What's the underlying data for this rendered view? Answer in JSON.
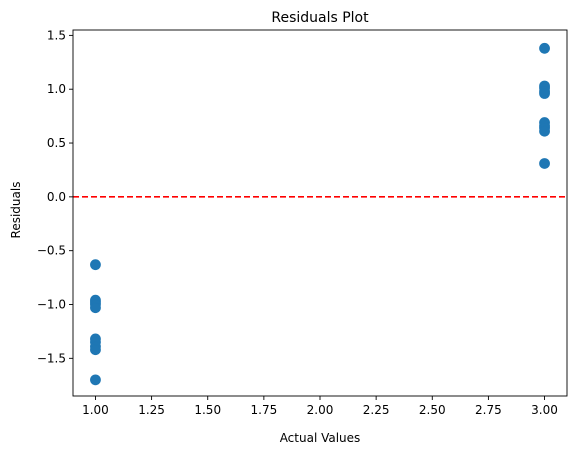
{
  "chart_data": {
    "type": "scatter",
    "title": "Residuals Plot",
    "xlabel": "Actual Values",
    "ylabel": "Residuals",
    "xlim": [
      0.9,
      3.1
    ],
    "ylim": [
      -1.85,
      1.55
    ],
    "xticks": [
      1.0,
      1.25,
      1.5,
      1.75,
      2.0,
      2.25,
      2.5,
      2.75,
      3.0
    ],
    "xtick_labels": [
      "1.00",
      "1.25",
      "1.50",
      "1.75",
      "2.00",
      "2.25",
      "2.50",
      "2.75",
      "3.00"
    ],
    "yticks": [
      -1.5,
      -1.0,
      -0.5,
      0.0,
      0.5,
      1.0,
      1.5
    ],
    "ytick_labels": [
      "−1.5",
      "−1.0",
      "−0.5",
      "0.0",
      "0.5",
      "1.0",
      "1.5"
    ],
    "grid": false,
    "legend": "none",
    "marker_color": "#1f77b4",
    "reference_line": {
      "y": 0.0,
      "color": "#ff0000",
      "style": "dashed"
    },
    "points": [
      {
        "x": 1.0,
        "y": -0.63
      },
      {
        "x": 1.0,
        "y": -0.96
      },
      {
        "x": 1.0,
        "y": -0.98
      },
      {
        "x": 1.0,
        "y": -1.0
      },
      {
        "x": 1.0,
        "y": -1.03
      },
      {
        "x": 1.0,
        "y": -1.32
      },
      {
        "x": 1.0,
        "y": -1.35
      },
      {
        "x": 1.0,
        "y": -1.39
      },
      {
        "x": 1.0,
        "y": -1.42
      },
      {
        "x": 1.0,
        "y": -1.7
      },
      {
        "x": 3.0,
        "y": 1.38
      },
      {
        "x": 3.0,
        "y": 1.03
      },
      {
        "x": 3.0,
        "y": 1.01
      },
      {
        "x": 3.0,
        "y": 0.98
      },
      {
        "x": 3.0,
        "y": 0.96
      },
      {
        "x": 3.0,
        "y": 0.69
      },
      {
        "x": 3.0,
        "y": 0.66
      },
      {
        "x": 3.0,
        "y": 0.64
      },
      {
        "x": 3.0,
        "y": 0.61
      },
      {
        "x": 3.0,
        "y": 0.31
      }
    ]
  }
}
